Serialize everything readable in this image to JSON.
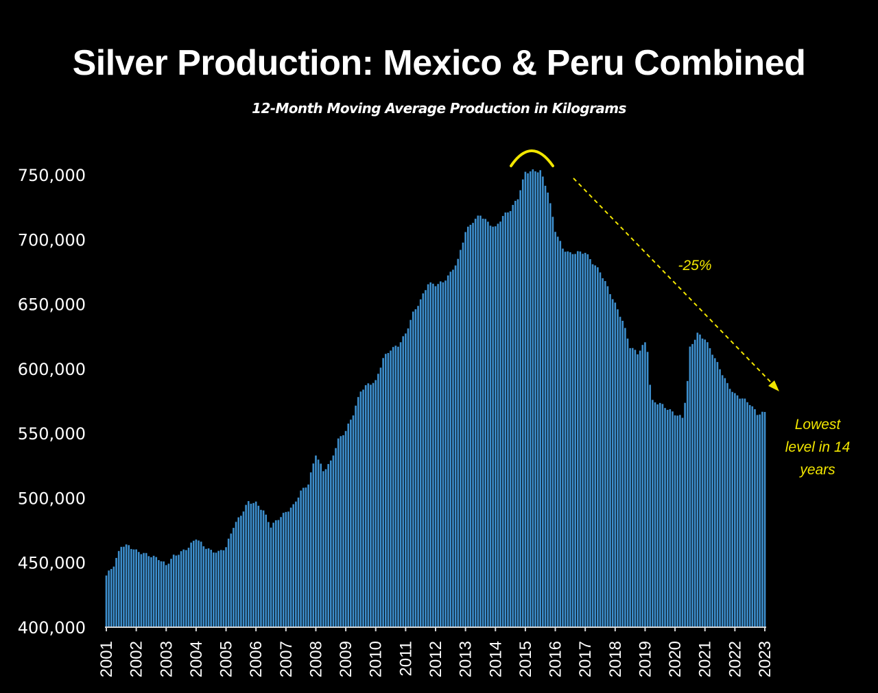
{
  "chart_data": {
    "type": "bar",
    "title": "Silver Production: Mexico & Peru Combined",
    "subtitle": "12-Month Moving Average Production in Kilograms",
    "xlabel": "",
    "ylabel": "",
    "ylim": [
      400000,
      775000
    ],
    "y_ticks": [
      400000,
      450000,
      500000,
      550000,
      600000,
      650000,
      700000,
      750000
    ],
    "y_tick_labels": [
      "400,000",
      "450,000",
      "500,000",
      "550,000",
      "600,000",
      "650,000",
      "700,000",
      "750,000"
    ],
    "x_tick_labels": [
      "2001",
      "2002",
      "2003",
      "2004",
      "2005",
      "2006",
      "2007",
      "2008",
      "2009",
      "2010",
      "2011",
      "2012",
      "2013",
      "2014",
      "2015",
      "2016",
      "2017",
      "2018",
      "2019",
      "2020",
      "2021",
      "2022",
      "2023"
    ],
    "x_range": [
      2001.0,
      2023.0
    ],
    "bar_color": "#3d8fce",
    "grid": false,
    "legend": "none",
    "series": [
      {
        "values": [
          [
            2001.0,
            440000
          ],
          [
            2001.25,
            448000
          ],
          [
            2001.5,
            463000
          ],
          [
            2001.75,
            463000
          ],
          [
            2002.0,
            459000
          ],
          [
            2002.5,
            455000
          ],
          [
            2002.75,
            453000
          ],
          [
            2003.0,
            448000
          ],
          [
            2003.25,
            455000
          ],
          [
            2003.5,
            458000
          ],
          [
            2003.75,
            462000
          ],
          [
            2004.0,
            469000
          ],
          [
            2004.25,
            463000
          ],
          [
            2004.5,
            459000
          ],
          [
            2004.75,
            458000
          ],
          [
            2005.0,
            462000
          ],
          [
            2005.25,
            478000
          ],
          [
            2005.5,
            487000
          ],
          [
            2005.75,
            497000
          ],
          [
            2006.0,
            496000
          ],
          [
            2006.25,
            490000
          ],
          [
            2006.5,
            478000
          ],
          [
            2006.75,
            484000
          ],
          [
            2007.0,
            489000
          ],
          [
            2007.25,
            494000
          ],
          [
            2007.5,
            505000
          ],
          [
            2007.75,
            511000
          ],
          [
            2008.0,
            534000
          ],
          [
            2008.25,
            521000
          ],
          [
            2008.5,
            528000
          ],
          [
            2008.75,
            545000
          ],
          [
            2009.0,
            552000
          ],
          [
            2009.25,
            565000
          ],
          [
            2009.5,
            583000
          ],
          [
            2009.75,
            588000
          ],
          [
            2010.0,
            590000
          ],
          [
            2010.25,
            608000
          ],
          [
            2010.5,
            615000
          ],
          [
            2010.75,
            618000
          ],
          [
            2011.0,
            627000
          ],
          [
            2011.25,
            643000
          ],
          [
            2011.5,
            653000
          ],
          [
            2011.75,
            666000
          ],
          [
            2012.0,
            665000
          ],
          [
            2012.25,
            667000
          ],
          [
            2012.5,
            674000
          ],
          [
            2012.75,
            684000
          ],
          [
            2013.0,
            706000
          ],
          [
            2013.25,
            714000
          ],
          [
            2013.5,
            719000
          ],
          [
            2013.75,
            713000
          ],
          [
            2014.0,
            709000
          ],
          [
            2014.25,
            718000
          ],
          [
            2014.5,
            723000
          ],
          [
            2014.75,
            732000
          ],
          [
            2015.0,
            752000
          ],
          [
            2015.25,
            753000
          ],
          [
            2015.5,
            753000
          ],
          [
            2015.75,
            737000
          ],
          [
            2016.0,
            707000
          ],
          [
            2016.25,
            693000
          ],
          [
            2016.5,
            689000
          ],
          [
            2016.75,
            690000
          ],
          [
            2017.0,
            690000
          ],
          [
            2017.25,
            682000
          ],
          [
            2017.5,
            675000
          ],
          [
            2017.75,
            663000
          ],
          [
            2018.0,
            650000
          ],
          [
            2018.25,
            637000
          ],
          [
            2018.5,
            617000
          ],
          [
            2018.75,
            612000
          ],
          [
            2019.0,
            620000
          ],
          [
            2019.1,
            613000
          ],
          [
            2019.2,
            575000
          ],
          [
            2019.5,
            573000
          ],
          [
            2019.75,
            569000
          ],
          [
            2020.0,
            565000
          ],
          [
            2020.25,
            562000
          ],
          [
            2020.4,
            585000
          ],
          [
            2020.5,
            616000
          ],
          [
            2020.75,
            627000
          ],
          [
            2021.0,
            623000
          ],
          [
            2021.25,
            612000
          ],
          [
            2021.5,
            600000
          ],
          [
            2021.75,
            588000
          ],
          [
            2022.0,
            580000
          ],
          [
            2022.25,
            577000
          ],
          [
            2022.5,
            573000
          ],
          [
            2022.75,
            565000
          ],
          [
            2023.0,
            566000
          ]
        ]
      }
    ],
    "annotations": {
      "decline_label": "-25%",
      "low_label": [
        "Lowest",
        "level in 14",
        "years"
      ],
      "color": "#f2e600"
    }
  }
}
